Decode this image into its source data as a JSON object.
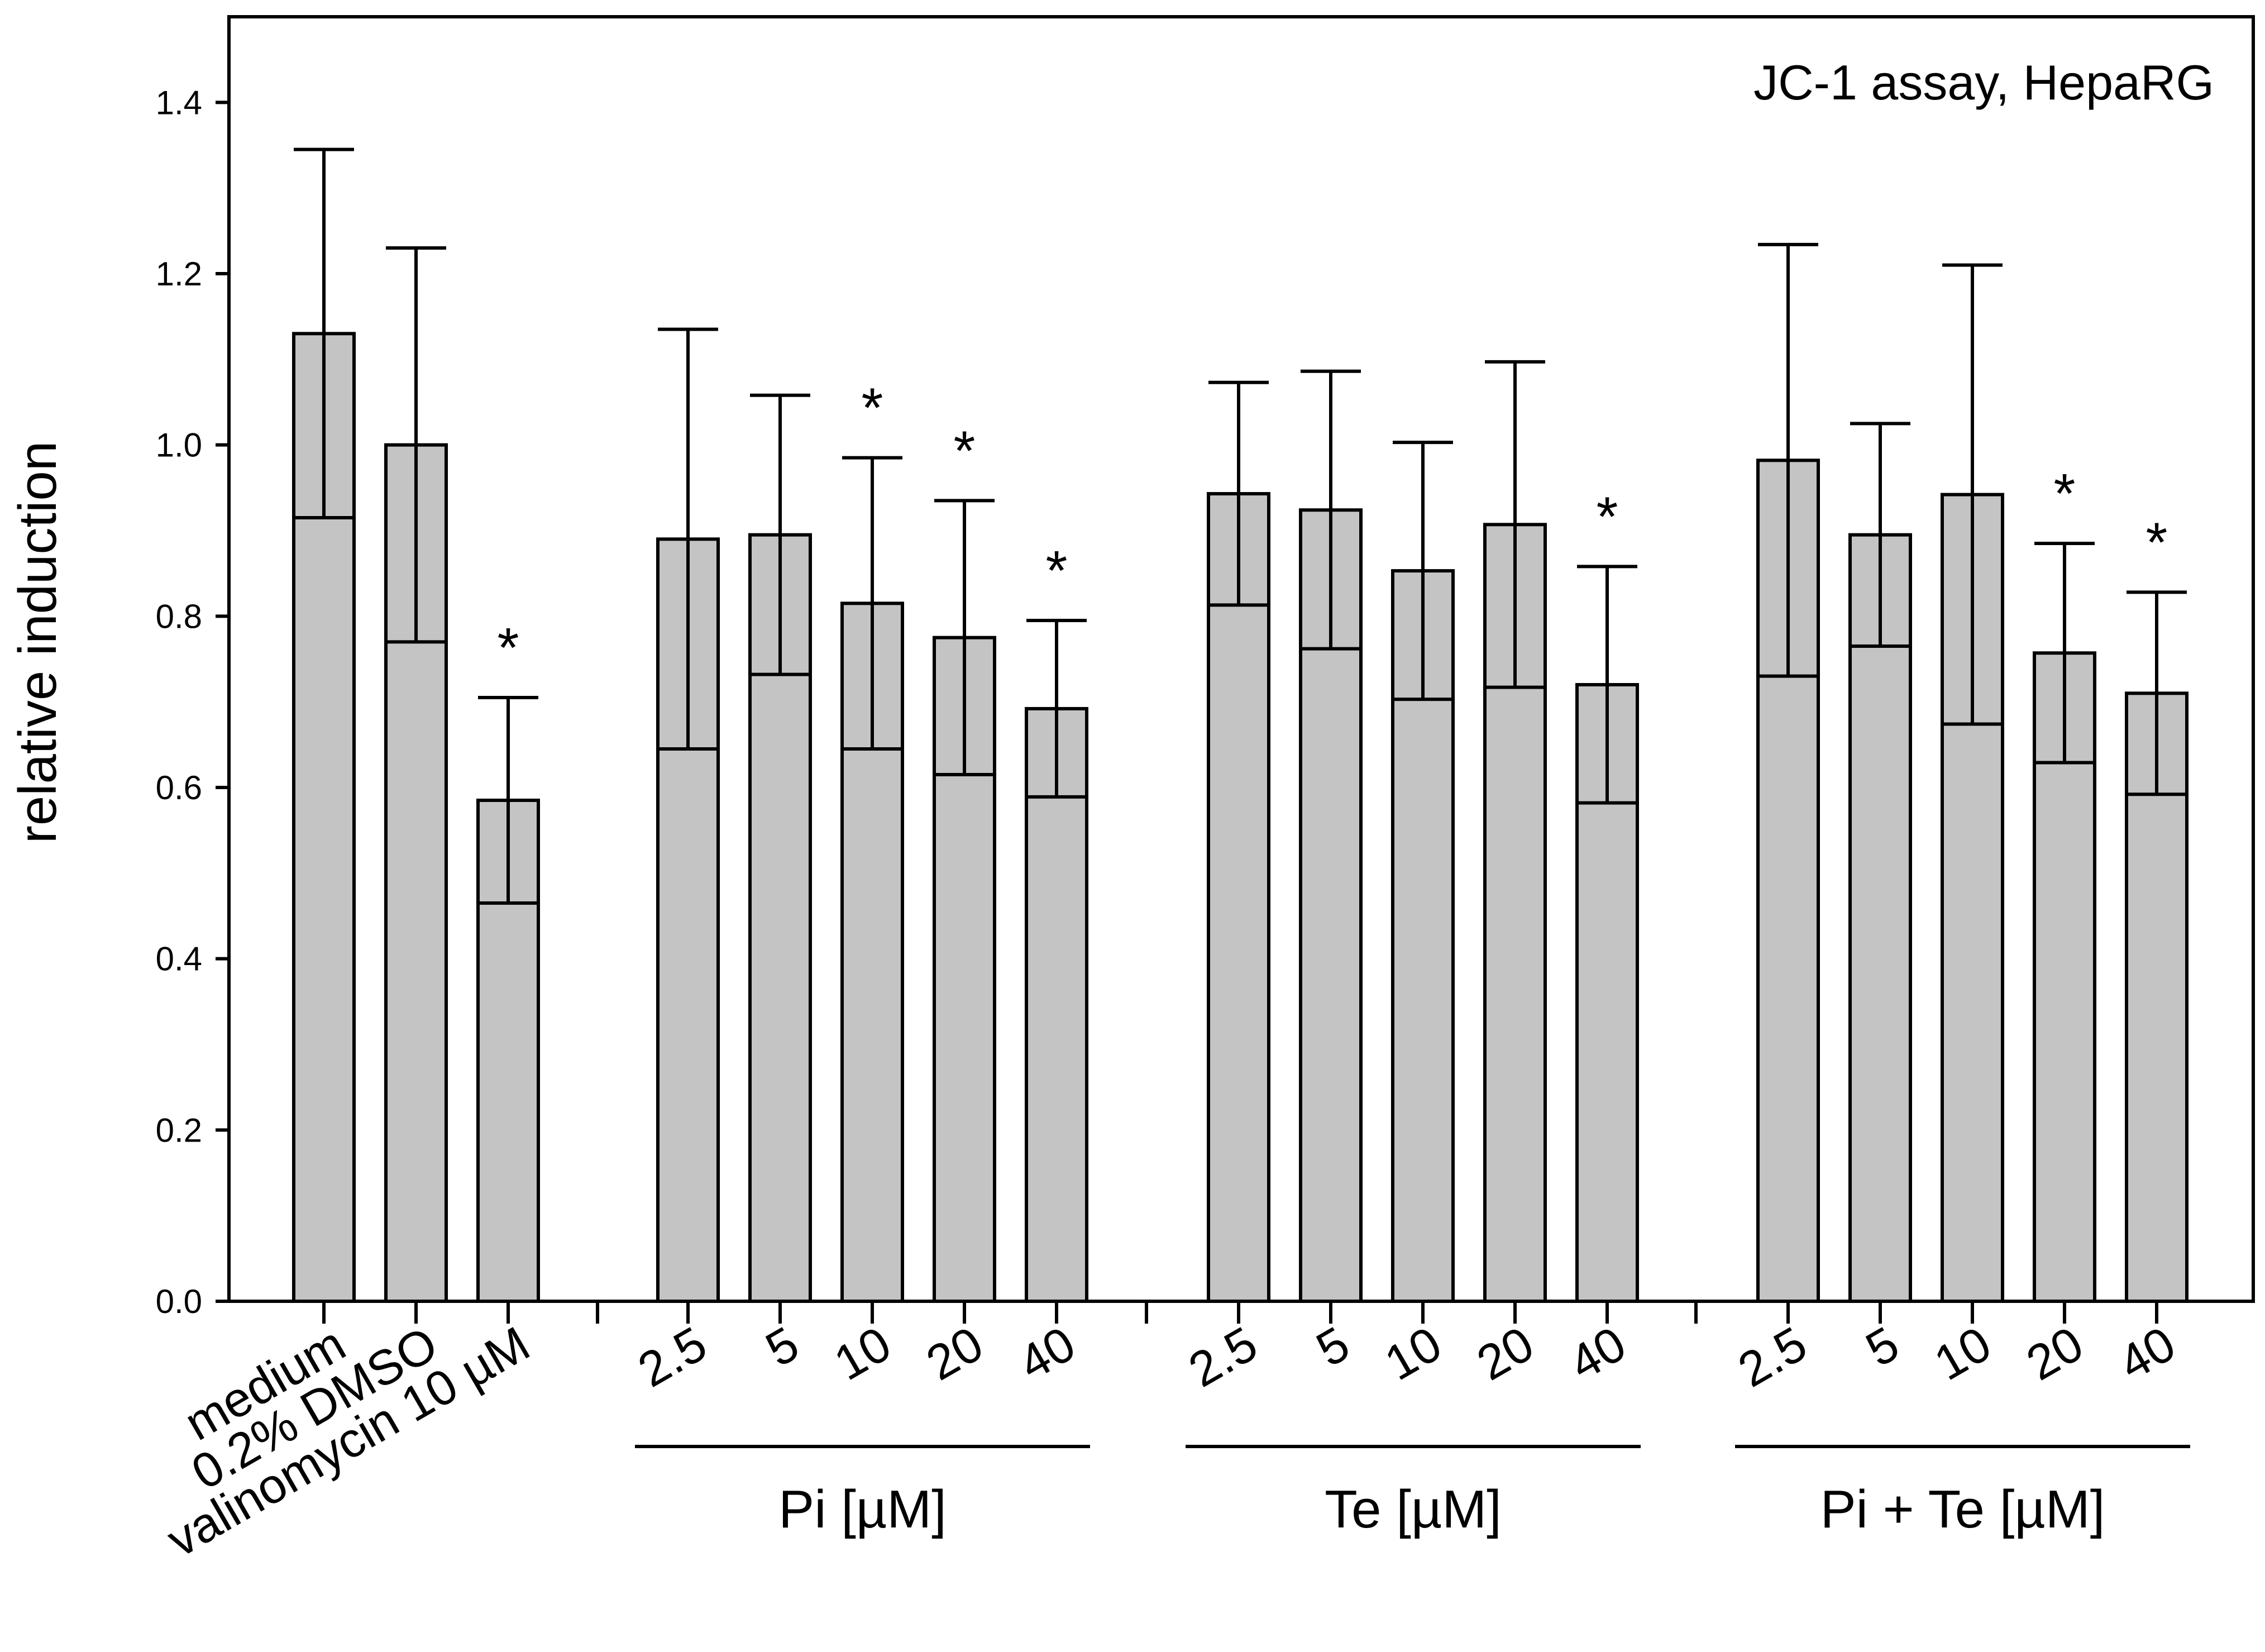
{
  "chart_data": {
    "type": "bar",
    "title": "JC-1 assay, HepaRG",
    "ylabel": "relative induction",
    "ylim": [
      0,
      1.5
    ],
    "yticks": [
      "0.0",
      "0.2",
      "0.4",
      "0.6",
      "0.8",
      "1.0",
      "1.2",
      "1.4"
    ],
    "groups": [
      {
        "name": "",
        "labels": [
          "medium",
          "0.2% DMSO",
          "valinomycin 10 µM"
        ],
        "values": [
          1.13,
          1.0,
          0.585
        ],
        "errors": [
          0.215,
          0.23,
          0.12
        ],
        "significant": [
          false,
          false,
          true
        ]
      },
      {
        "name": "Pi [µM]",
        "labels": [
          "2.5",
          "5",
          "10",
          "20",
          "40"
        ],
        "values": [
          0.89,
          0.895,
          0.815,
          0.775,
          0.692
        ],
        "errors": [
          0.245,
          0.163,
          0.17,
          0.16,
          0.103
        ],
        "significant": [
          false,
          false,
          true,
          true,
          true
        ]
      },
      {
        "name": "Te [µM]",
        "labels": [
          "2.5",
          "5",
          "10",
          "20",
          "40"
        ],
        "values": [
          0.943,
          0.924,
          0.853,
          0.907,
          0.72
        ],
        "errors": [
          0.13,
          0.162,
          0.15,
          0.19,
          0.138
        ],
        "significant": [
          false,
          false,
          false,
          false,
          true
        ]
      },
      {
        "name": "Pi + Te [µM]",
        "labels": [
          "2.5",
          "5",
          "10",
          "20",
          "40"
        ],
        "values": [
          0.982,
          0.895,
          0.942,
          0.757,
          0.71
        ],
        "errors": [
          0.252,
          0.13,
          0.268,
          0.128,
          0.118
        ],
        "significant": [
          false,
          false,
          false,
          true,
          true
        ]
      }
    ],
    "significance_marker": "*"
  }
}
